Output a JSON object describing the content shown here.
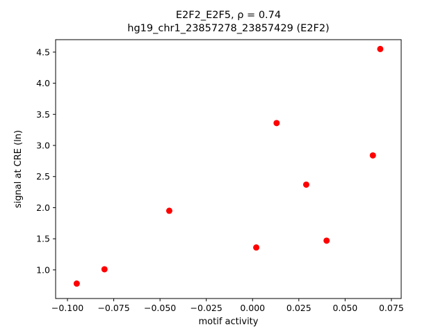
{
  "chart_data": {
    "type": "scatter",
    "title_line1": "E2F2_E2F5, ρ = 0.74",
    "title_line2": "hg19_chr1_23857278_23857429 (E2F2)",
    "xlabel": "motif activity",
    "ylabel": "signal at CRE (ln)",
    "marker_color": "#ff0000",
    "marker_radius": 4.5,
    "xlim": [
      -0.1064,
      0.0803
    ],
    "ylim": [
      0.54,
      4.7
    ],
    "x_ticks": [
      {
        "value": -0.1,
        "label": "−0.100"
      },
      {
        "value": -0.075,
        "label": "−0.075"
      },
      {
        "value": -0.05,
        "label": "−0.050"
      },
      {
        "value": -0.025,
        "label": "−0.025"
      },
      {
        "value": 0.0,
        "label": "0.000"
      },
      {
        "value": 0.025,
        "label": "0.025"
      },
      {
        "value": 0.05,
        "label": "0.050"
      },
      {
        "value": 0.075,
        "label": "0.075"
      }
    ],
    "y_ticks": [
      {
        "value": 1.0,
        "label": "1.0"
      },
      {
        "value": 1.5,
        "label": "1.5"
      },
      {
        "value": 2.0,
        "label": "2.0"
      },
      {
        "value": 2.5,
        "label": "2.5"
      },
      {
        "value": 3.0,
        "label": "3.0"
      },
      {
        "value": 3.5,
        "label": "3.5"
      },
      {
        "value": 4.0,
        "label": "4.0"
      },
      {
        "value": 4.5,
        "label": "4.5"
      }
    ],
    "points": [
      {
        "x": -0.095,
        "y": 0.78
      },
      {
        "x": -0.08,
        "y": 1.01
      },
      {
        "x": -0.045,
        "y": 1.95
      },
      {
        "x": 0.002,
        "y": 1.36
      },
      {
        "x": 0.013,
        "y": 3.36
      },
      {
        "x": 0.029,
        "y": 2.37
      },
      {
        "x": 0.04,
        "y": 1.47
      },
      {
        "x": 0.065,
        "y": 2.84
      },
      {
        "x": 0.069,
        "y": 4.55
      }
    ],
    "grid": false,
    "legend": null
  }
}
